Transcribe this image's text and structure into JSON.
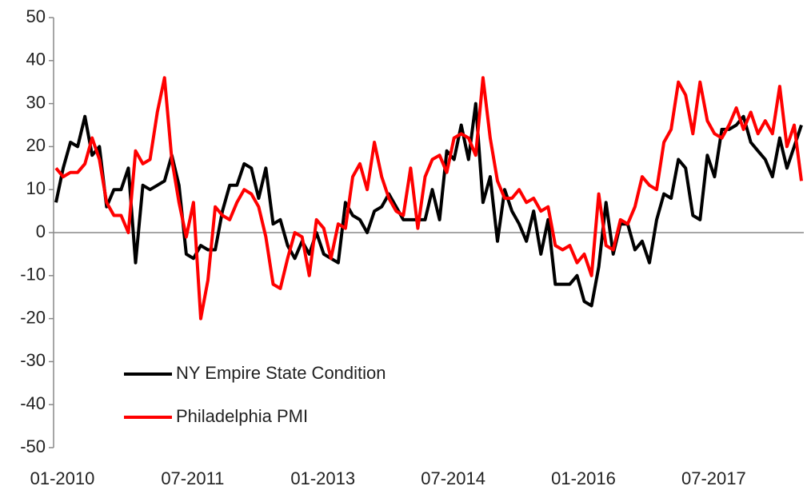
{
  "chart_data": {
    "type": "line",
    "categories": [
      "01-2010",
      null,
      null,
      null,
      null,
      null,
      null,
      null,
      null,
      null,
      null,
      null,
      null,
      null,
      null,
      null,
      null,
      null,
      "07-2011",
      null,
      null,
      null,
      null,
      null,
      null,
      null,
      null,
      null,
      null,
      null,
      null,
      null,
      null,
      null,
      null,
      null,
      "01-2013",
      null,
      null,
      null,
      null,
      null,
      null,
      null,
      null,
      null,
      null,
      null,
      null,
      null,
      null,
      null,
      null,
      null,
      "07-2014",
      null,
      null,
      null,
      null,
      null,
      null,
      null,
      null,
      null,
      null,
      null,
      null,
      null,
      null,
      null,
      null,
      null,
      "01-2016",
      null,
      null,
      null,
      null,
      null,
      null,
      null,
      null,
      null,
      null,
      null,
      null,
      null,
      null,
      null,
      null,
      null,
      "07-2017",
      null,
      null,
      null,
      null,
      null,
      null,
      null,
      null,
      null,
      null,
      null,
      null,
      null
    ],
    "series": [
      {
        "name": "NY Empire State Condition",
        "color": "#000000",
        "values": [
          7,
          15,
          21,
          20,
          27,
          18,
          20,
          6,
          10,
          10,
          15,
          -7,
          11,
          10,
          11,
          12,
          18,
          11,
          -5,
          -6,
          -3,
          -4,
          -4,
          5,
          11,
          11,
          16,
          15,
          8,
          15,
          2,
          3,
          -3,
          -6,
          -2,
          -5,
          0,
          -5,
          -6,
          -7,
          7,
          4,
          3,
          0,
          5,
          6,
          9,
          6,
          3,
          3,
          3,
          3,
          10,
          3,
          19,
          17,
          25,
          17,
          30,
          7,
          13,
          -2,
          10,
          5,
          2,
          -2,
          5,
          -5,
          3,
          -12,
          -12,
          -12,
          -10,
          -16,
          -17,
          -8,
          7,
          -5,
          2,
          2,
          -4,
          -2,
          -7,
          3,
          9,
          8,
          17,
          15,
          4,
          3,
          18,
          13,
          24,
          24,
          25,
          27,
          21,
          19,
          17,
          13,
          22,
          15,
          20,
          25
        ]
      },
      {
        "name": "Philadelphia PMI",
        "color": "#ff0000",
        "values": [
          15,
          13,
          14,
          14,
          16,
          22,
          17,
          7,
          4,
          4,
          0,
          19,
          16,
          17,
          28,
          36,
          17,
          7,
          -1,
          7,
          -20,
          -11,
          6,
          4,
          3,
          7,
          10,
          9,
          6,
          -1,
          -12,
          -13,
          -6,
          0,
          -1,
          -10,
          3,
          1,
          -6,
          2,
          1,
          13,
          16,
          10,
          21,
          13,
          8,
          5,
          4,
          15,
          1,
          13,
          17,
          18,
          14,
          22,
          23,
          22,
          18,
          36,
          22,
          12,
          8,
          8,
          10,
          7,
          8,
          5,
          6,
          -3,
          -4,
          -3,
          -7,
          -5,
          -10,
          9,
          -3,
          -4,
          3,
          2,
          6,
          13,
          11,
          10,
          21,
          24,
          35,
          32,
          23,
          35,
          26,
          23,
          22,
          25,
          29,
          24,
          28,
          23,
          26,
          23,
          34,
          20,
          25,
          12
        ]
      }
    ],
    "ylim": [
      -50,
      50
    ],
    "yticks": [
      -50,
      -40,
      -30,
      -20,
      -10,
      0,
      10,
      20,
      30,
      40,
      50
    ],
    "grid": false
  }
}
